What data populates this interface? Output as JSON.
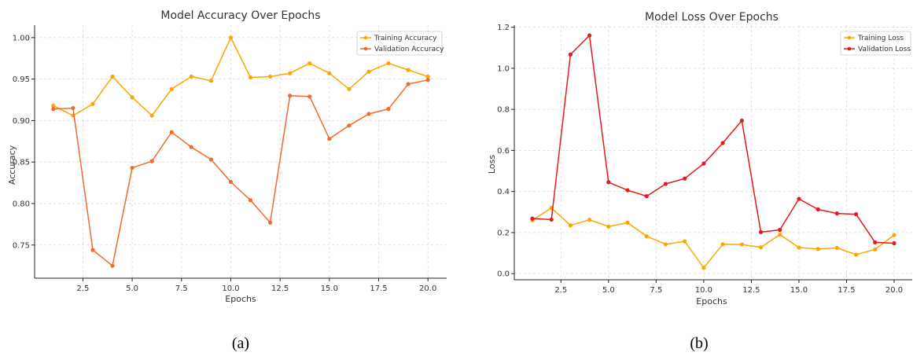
{
  "chart_data": [
    {
      "type": "line",
      "title": "Model Accuracy Over Epochs",
      "xlabel": "Epochs",
      "ylabel": "Accuracy",
      "caption": "(a)",
      "xlim": [
        0.05,
        20.95
      ],
      "ylim": [
        0.71,
        1.015
      ],
      "xticks": [
        2.5,
        5.0,
        7.5,
        10.0,
        12.5,
        15.0,
        17.5,
        20.0
      ],
      "xtick_labels": [
        "2.5",
        "5.0",
        "7.5",
        "10.0",
        "12.5",
        "15.0",
        "17.5",
        "20.0"
      ],
      "yticks": [
        0.75,
        0.8,
        0.85,
        0.9,
        0.95,
        1.0
      ],
      "ytick_labels": [
        "0.75",
        "0.80",
        "0.85",
        "0.90",
        "0.95",
        "1.00"
      ],
      "grid": true,
      "legend_position": "top-right",
      "x": [
        1,
        2,
        3,
        4,
        5,
        6,
        7,
        8,
        9,
        10,
        11,
        12,
        13,
        14,
        15,
        16,
        17,
        18,
        19,
        20
      ],
      "series": [
        {
          "name": "Training Accuracy",
          "color": "#FFA500",
          "values": [
            0.918,
            0.906,
            0.92,
            0.953,
            0.928,
            0.906,
            0.938,
            0.953,
            0.948,
            1.0,
            0.952,
            0.953,
            0.957,
            0.969,
            0.957,
            0.938,
            0.959,
            0.969,
            0.961,
            0.953
          ]
        },
        {
          "name": "Validation Accuracy",
          "color": "#F26B2A",
          "values": [
            0.914,
            0.915,
            0.744,
            0.725,
            0.843,
            0.851,
            0.886,
            0.868,
            0.853,
            0.826,
            0.804,
            0.777,
            0.93,
            0.929,
            0.878,
            0.894,
            0.908,
            0.914,
            0.944,
            0.949
          ]
        }
      ]
    },
    {
      "type": "line",
      "title": "Model Loss Over Epochs",
      "xlabel": "Epochs",
      "ylabel": "Loss",
      "caption": "(b)",
      "xlim": [
        0.05,
        20.95
      ],
      "ylim": [
        -0.03,
        1.21
      ],
      "xticks": [
        2.5,
        5.0,
        7.5,
        10.0,
        12.5,
        15.0,
        17.5,
        20.0
      ],
      "xtick_labels": [
        "2.5",
        "5.0",
        "7.5",
        "10.0",
        "12.5",
        "15.0",
        "17.5",
        "20.0"
      ],
      "yticks": [
        0.0,
        0.2,
        0.4,
        0.6,
        0.8,
        1.0,
        1.2
      ],
      "ytick_labels": [
        "0.0",
        "0.2",
        "0.4",
        "0.6",
        "0.8",
        "1.0",
        "1.2"
      ],
      "grid": true,
      "legend_position": "top-right",
      "x": [
        1,
        2,
        3,
        4,
        5,
        6,
        7,
        8,
        9,
        10,
        11,
        12,
        13,
        14,
        15,
        16,
        17,
        18,
        19,
        20
      ],
      "series": [
        {
          "name": "Training Loss",
          "color": "#FFA500",
          "values": [
            0.26,
            0.32,
            0.235,
            0.262,
            0.229,
            0.248,
            0.182,
            0.143,
            0.157,
            0.028,
            0.143,
            0.142,
            0.128,
            0.19,
            0.127,
            0.12,
            0.125,
            0.092,
            0.118,
            0.188
          ]
        },
        {
          "name": "Validation Loss",
          "color": "#E41A1C",
          "values": [
            0.268,
            0.263,
            1.067,
            1.16,
            0.445,
            0.406,
            0.377,
            0.437,
            0.463,
            0.536,
            0.636,
            0.745,
            0.202,
            0.213,
            0.364,
            0.313,
            0.293,
            0.289,
            0.152,
            0.148
          ]
        }
      ]
    }
  ]
}
